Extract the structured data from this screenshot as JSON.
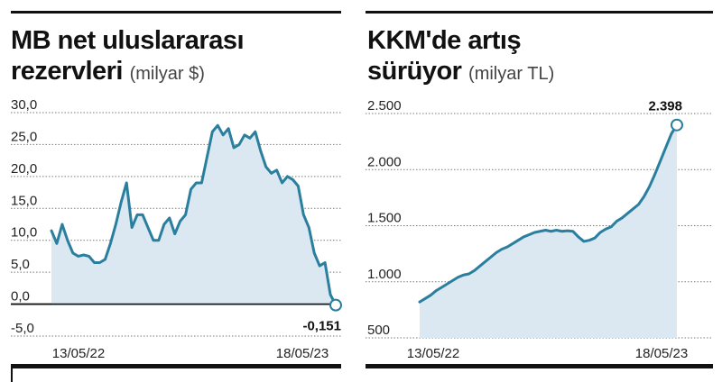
{
  "chart_data": [
    {
      "type": "area",
      "title_main": "MB net uluslararası",
      "title_second": "rezervleri",
      "title_unit": "(milyar $)",
      "y_ticks": [
        "30,0",
        "25,0",
        "20,0",
        "15,0",
        "10,0",
        "5,0",
        "0,0",
        "-5,0"
      ],
      "y_tick_values": [
        30,
        25,
        20,
        15,
        10,
        5,
        0,
        -5
      ],
      "ylim": [
        -5,
        30
      ],
      "x_labels": [
        "13/05/22",
        "18/05/23"
      ],
      "end_label": "-0,151",
      "color_line": "#2a7f9e",
      "color_fill": "#dbe8f1",
      "values": [
        11.5,
        9.5,
        12.5,
        10,
        8,
        7.5,
        7.7,
        7.5,
        6.5,
        6.5,
        7,
        9.5,
        12.5,
        16,
        19,
        12,
        14,
        14,
        12,
        10,
        10,
        12.5,
        13.5,
        11,
        13,
        14,
        18,
        19,
        19,
        23,
        27,
        28,
        26.5,
        27.5,
        24.5,
        25,
        26.5,
        26,
        27,
        24,
        21.5,
        20.5,
        21,
        19,
        20,
        19.5,
        18.5,
        14,
        12,
        8,
        6,
        6.5,
        1.5,
        -0.151
      ]
    },
    {
      "type": "area",
      "title_main": "KKM'de artış",
      "title_second": "sürüyor",
      "title_unit": "(milyar TL)",
      "y_ticks": [
        "2.500",
        "2.000",
        "1.500",
        "1.000",
        "500"
      ],
      "y_tick_values": [
        2500,
        2000,
        1500,
        1000,
        500
      ],
      "ylim": [
        500,
        2500
      ],
      "x_labels": [
        "13/05/22",
        "18/05/23"
      ],
      "end_label": "2.398",
      "color_line": "#2a7f9e",
      "color_fill": "#dbe8f1",
      "values": [
        820,
        850,
        880,
        920,
        950,
        980,
        1010,
        1040,
        1060,
        1070,
        1100,
        1140,
        1180,
        1220,
        1260,
        1290,
        1310,
        1340,
        1370,
        1400,
        1420,
        1440,
        1450,
        1460,
        1450,
        1460,
        1450,
        1455,
        1450,
        1400,
        1360,
        1370,
        1390,
        1440,
        1470,
        1490,
        1540,
        1570,
        1610,
        1650,
        1690,
        1760,
        1850,
        1960,
        2080,
        2200,
        2320,
        2398
      ]
    }
  ]
}
